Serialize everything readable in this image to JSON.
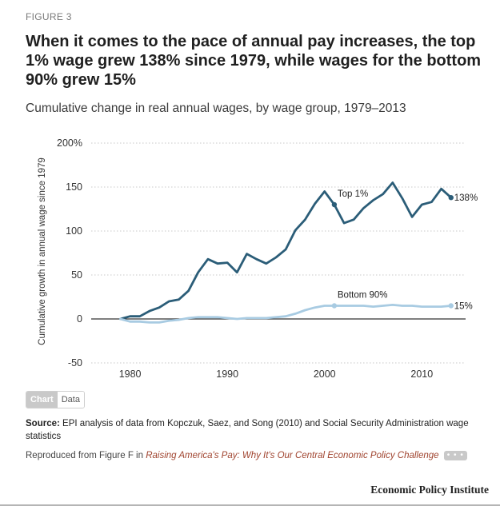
{
  "figure_label": "FIGURE 3",
  "headline": "When it comes to the pace of annual pay increases, the top 1% wage grew 138% since 1979, while wages for the bottom 90% grew 15%",
  "subtitle": "Cumulative change in real annual wages, by wage group, 1979–2013",
  "toggle": {
    "chart_label": "Chart",
    "data_label": "Data",
    "active": "Chart"
  },
  "source": {
    "label": "Source:",
    "text": "EPI analysis of data from Kopczuk, Saez, and Song (2010) and Social Security Administration wage statistics"
  },
  "reproduced": {
    "prefix": "Reproduced from Figure F in",
    "link_text": "Raising America's Pay: Why It's Our Central Economic Policy Challenge",
    "more_label": "• • •"
  },
  "brand": "Economic Policy Institute",
  "colors": {
    "top1": "#2b5d78",
    "bottom90": "#a8cbe2",
    "zero_line": "#333333",
    "grid": "#c8c8c8"
  },
  "chart_data": {
    "type": "line",
    "title": "",
    "xlabel": "",
    "ylabel": "Cumulative growth in annual wage since 1979",
    "xlim": [
      1976,
      2014.5
    ],
    "ylim": [
      -50,
      200
    ],
    "x_ticks": [
      1980,
      1990,
      2000,
      2010
    ],
    "y_ticks": [
      -50,
      0,
      50,
      100,
      150,
      200
    ],
    "y_tick_labels": [
      "-50",
      "0",
      "50",
      "100",
      "150",
      "200%"
    ],
    "grid": true,
    "legend": "none",
    "x": [
      1979,
      1980,
      1981,
      1982,
      1983,
      1984,
      1985,
      1986,
      1987,
      1988,
      1989,
      1990,
      1991,
      1992,
      1993,
      1994,
      1995,
      1996,
      1997,
      1998,
      1999,
      2000,
      2001,
      2002,
      2003,
      2004,
      2005,
      2006,
      2007,
      2008,
      2009,
      2010,
      2011,
      2012,
      2013
    ],
    "series": [
      {
        "name": "Top 1%",
        "values": [
          0,
          3,
          3,
          9,
          13,
          20,
          22,
          32,
          53,
          68,
          63,
          64,
          53,
          74,
          68,
          63,
          70,
          79,
          101,
          113,
          131,
          145,
          130,
          109,
          113,
          126,
          135,
          142,
          155,
          137,
          116,
          130,
          133,
          148,
          138
        ],
        "end_label": "138%",
        "marker_x": 2001
      },
      {
        "name": "Bottom 90%",
        "values": [
          0,
          -3,
          -3,
          -4,
          -4,
          -2,
          -1,
          1,
          2,
          2,
          2,
          1,
          0,
          1,
          1,
          1,
          2,
          3,
          6,
          10,
          13,
          15,
          15,
          15,
          15,
          15,
          14,
          15,
          16,
          15,
          15,
          14,
          14,
          14,
          15
        ],
        "end_label": "15%",
        "marker_x": 2001
      }
    ]
  }
}
